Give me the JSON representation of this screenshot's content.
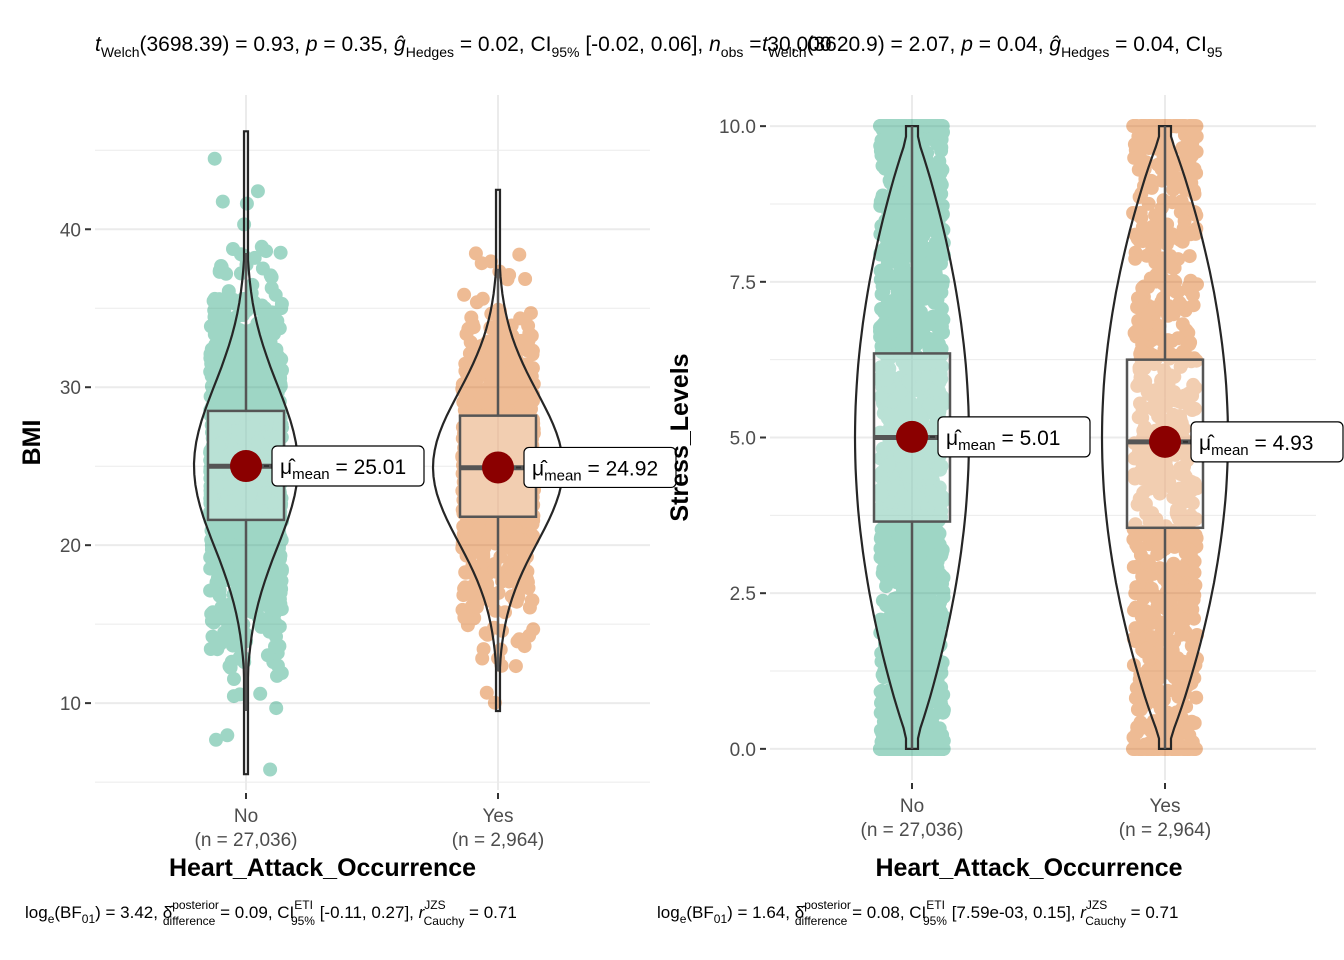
{
  "colors": {
    "no": "#1B9E77",
    "yes": "#D95F02",
    "mean": "#8B0000",
    "grid": "#EBEBEB",
    "line": "#333333"
  },
  "chart_data": [
    {
      "type": "violin-box-jitter",
      "subtitle": "t_Welch(3698.39) = 0.93, p = 0.35, ĝ_Hedges = 0.02, CI_95% [-0.02, 0.06], n_obs = 30,000",
      "subtitle_visible": "tWelch(3698.39) = 0.93, p = 0.35, ĝHedges = 0.02, CI95% [-0.02, 0.06], nobs = 30,000",
      "caption": "log_e(BF_01) = 3.42, δ̂_difference^posterior = 0.09, CI_95%^ETI [-0.11, 0.27], r_Cauchy^JZS = 0.71",
      "xlabel": "Heart_Attack_Occurrence",
      "ylabel": "BMI",
      "ylim": [
        4.5,
        48.5
      ],
      "yticks": [
        10,
        20,
        30,
        40
      ],
      "groups": [
        {
          "name": "No",
          "n_label": "(n = 27,036)",
          "mean": 25.01,
          "mean_label": "= 25.01",
          "q1": 21.6,
          "median": 25.0,
          "q3": 28.5,
          "whisker_low": 9.5,
          "whisker_high": 38.5,
          "violin_min": 5.5,
          "violin_max": 46.2,
          "points_min": 5.5,
          "points_max": 46.2
        },
        {
          "name": "Yes",
          "n_label": "(n = 2,964)",
          "mean": 24.92,
          "mean_label": "= 24.92",
          "q1": 21.8,
          "median": 24.9,
          "q3": 28.2,
          "whisker_low": 12.0,
          "whisker_high": 37.5,
          "violin_min": 9.5,
          "violin_max": 42.5,
          "points_min": 9.5,
          "points_max": 42.6
        }
      ]
    },
    {
      "type": "violin-box-jitter",
      "subtitle": "t_Welch(3620.9) = 2.07, p = 0.04, ĝ_Hedges = 0.04, CI_95%",
      "subtitle_visible": "tWelch(3620.9) = 2.07, p = 0.04, ĝHedges = 0.04, CI95",
      "caption": "log_e(BF_01) = 1.64, δ̂_difference^posterior = 0.08, CI_95%^ETI [7.59e-03, 0.15], r_Cauchy^JZS = 0.71",
      "xlabel": "Heart_Attack_Occurrence",
      "ylabel": "Stress_Levels",
      "ylim": [
        -0.5,
        10.5
      ],
      "yticks": [
        0.0,
        2.5,
        5.0,
        7.5,
        10.0
      ],
      "ytick_labels": [
        "0.0",
        "2.5",
        "5.0",
        "7.5",
        "10.0"
      ],
      "groups": [
        {
          "name": "No",
          "n_label": "(n = 27,036)",
          "mean": 5.01,
          "mean_label": "= 5.01",
          "q1": 3.65,
          "median": 5.0,
          "q3": 6.35,
          "whisker_low": 0.0,
          "whisker_high": 10.0,
          "violin_min": 0.0,
          "violin_max": 10.0,
          "points_min": 0.0,
          "points_max": 10.0
        },
        {
          "name": "Yes",
          "n_label": "(n = 2,964)",
          "mean": 4.93,
          "mean_label": "= 4.93",
          "q1": 3.55,
          "median": 4.93,
          "q3": 6.25,
          "whisker_low": 0.0,
          "whisker_high": 10.0,
          "violin_min": 0.0,
          "violin_max": 10.0,
          "points_min": 0.0,
          "points_max": 10.0
        }
      ]
    }
  ],
  "texts": {
    "p1_sub_t": "t",
    "p1_sub_welch": "Welch",
    "p1_sub_a": "(3698.39) = 0.93, ",
    "p1_sub_p": "p",
    "p1_sub_b": " = 0.35, ",
    "p1_sub_g": "ĝ",
    "p1_sub_hedges": "Hedges",
    "p1_sub_c": " = 0.02, CI",
    "p1_sub_95": "95%",
    "p1_sub_d": " [-0.02, 0.06], ",
    "p1_sub_n": "n",
    "p1_sub_obs": "obs",
    "p1_sub_e": " = 30,000",
    "p2_sub_t": "t",
    "p2_sub_welch": "Welch",
    "p2_sub_a": "(3620.9) = 2.07, ",
    "p2_sub_p": "p",
    "p2_sub_b": " = 0.04, ",
    "p2_sub_g": "ĝ",
    "p2_sub_hedges": "Hedges",
    "p2_sub_c": " = 0.04, CI",
    "p2_sub_95": "95",
    "cap_log": "log",
    "cap_e": "e",
    "cap_bf": "(BF",
    "cap_01": "01",
    "cap_close": ") = ",
    "cap1_v1": "3.42, ",
    "cap2_v1": "1.64, ",
    "cap_delta": "δ̂",
    "cap_post": "posterior",
    "cap_diff": "difference",
    "cap1_v2": " = 0.09, CI",
    "cap2_v2": " = 0.08, CI",
    "cap_eti": "ETI",
    "cap_95": "95%",
    "cap1_v3": " [-0.11, 0.27], ",
    "cap2_v3": " [7.59e-03, 0.15], ",
    "cap_r": "r",
    "cap_jzs": "JZS",
    "cap_cauchy": "Cauchy",
    "cap_v4": " = 0.71",
    "mu": "μ̂",
    "mu_sub": "mean"
  }
}
